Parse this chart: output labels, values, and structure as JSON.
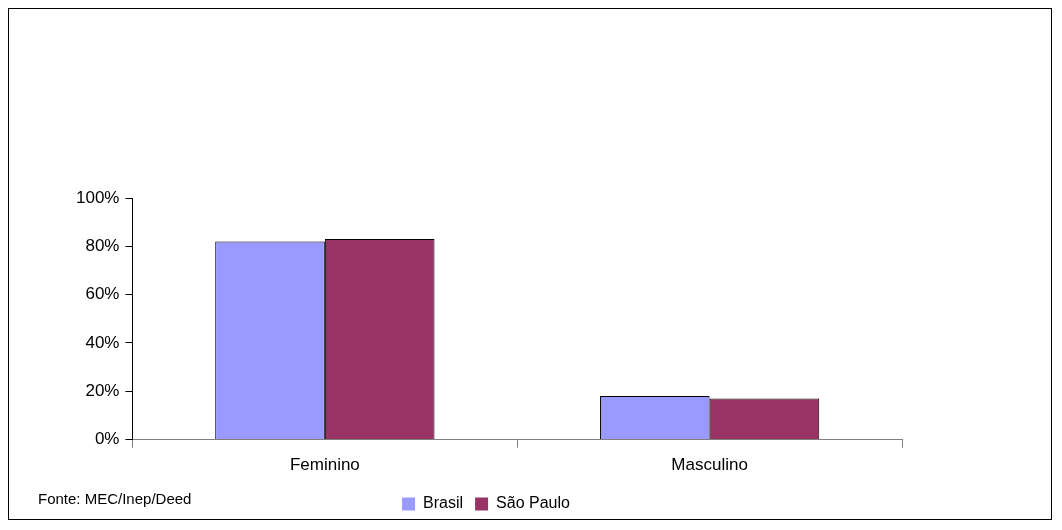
{
  "chart_data": {
    "type": "bar",
    "categories": [
      "Feminino",
      "Masculino"
    ],
    "series": [
      {
        "name": "Brasil",
        "color": "#9999ff",
        "values": [
          82,
          18
        ]
      },
      {
        "name": "São Paulo",
        "color": "#993366",
        "values": [
          83,
          17
        ]
      }
    ],
    "ylim": [
      0,
      100
    ],
    "yticks": [
      {
        "value": 0,
        "label": "0%"
      },
      {
        "value": 20,
        "label": "20%"
      },
      {
        "value": 40,
        "label": "40%"
      },
      {
        "value": 60,
        "label": "60%"
      },
      {
        "value": 80,
        "label": "80%"
      },
      {
        "value": 100,
        "label": "100%"
      }
    ],
    "grid": false,
    "legend": "bottom",
    "annotations": [
      "Fonte: MEC/Inep/Deed"
    ]
  }
}
